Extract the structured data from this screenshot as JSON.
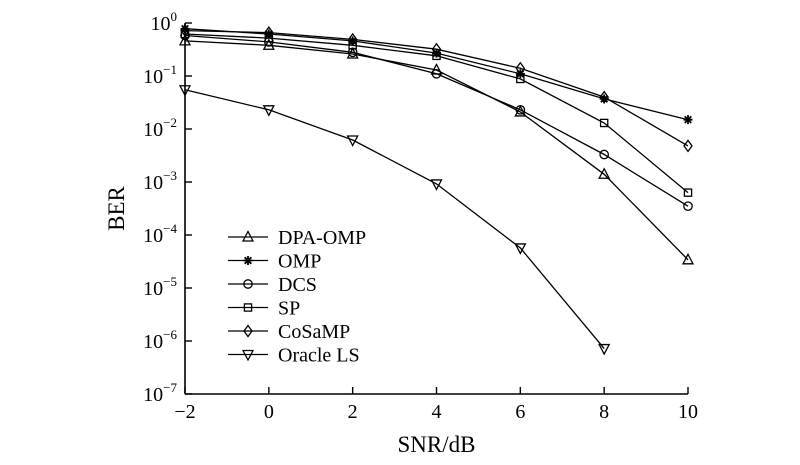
{
  "chart_data": {
    "type": "line",
    "title": "",
    "xlabel": "SNR/dB",
    "ylabel": "BER",
    "x": [
      -2,
      0,
      2,
      4,
      6,
      8,
      10
    ],
    "xlim": [
      -2,
      10
    ],
    "ylim": [
      1e-07,
      1
    ],
    "y_scale": "log",
    "x_ticks": [
      "−2",
      "0",
      "2",
      "4",
      "6",
      "8",
      "10"
    ],
    "y_ticks": [
      {
        "base": "10",
        "exp": "0"
      },
      {
        "base": "10",
        "exp": "−1"
      },
      {
        "base": "10",
        "exp": "−2"
      },
      {
        "base": "10",
        "exp": "−3"
      },
      {
        "base": "10",
        "exp": "−4"
      },
      {
        "base": "10",
        "exp": "−5"
      },
      {
        "base": "10",
        "exp": "−6"
      },
      {
        "base": "10",
        "exp": "−7"
      }
    ],
    "grid": false,
    "legend_position": "left-bottom",
    "line_color": "#000000",
    "series": [
      {
        "name": "DPA-OMP",
        "marker": "triangle-up",
        "x": [
          -2,
          0,
          2,
          4,
          6,
          8,
          10
        ],
        "y": [
          0.46,
          0.38,
          0.26,
          0.13,
          0.021,
          0.0014,
          3.4e-05
        ]
      },
      {
        "name": "OMP",
        "marker": "asterisk",
        "x": [
          -2,
          0,
          2,
          4,
          6,
          8,
          10
        ],
        "y": [
          0.78,
          0.62,
          0.46,
          0.27,
          0.11,
          0.037,
          0.015
        ]
      },
      {
        "name": "DCS",
        "marker": "circle",
        "x": [
          -2,
          0,
          2,
          4,
          6,
          8,
          10
        ],
        "y": [
          0.58,
          0.44,
          0.28,
          0.11,
          0.023,
          0.0033,
          0.00035
        ]
      },
      {
        "name": "SP",
        "marker": "square",
        "x": [
          -2,
          0,
          2,
          4,
          6,
          8,
          10
        ],
        "y": [
          0.62,
          0.52,
          0.38,
          0.24,
          0.088,
          0.013,
          0.00063
        ]
      },
      {
        "name": "CoSaMP",
        "marker": "diamond",
        "x": [
          -2,
          0,
          2,
          4,
          6,
          8,
          10
        ],
        "y": [
          0.72,
          0.66,
          0.49,
          0.32,
          0.14,
          0.04,
          0.0048
        ]
      },
      {
        "name": "Oracle LS",
        "marker": "triangle-down",
        "x": [
          -2,
          0,
          2,
          4,
          6,
          8
        ],
        "y": [
          0.055,
          0.023,
          0.0062,
          0.00092,
          5.7e-05,
          7.2e-07
        ]
      }
    ]
  }
}
